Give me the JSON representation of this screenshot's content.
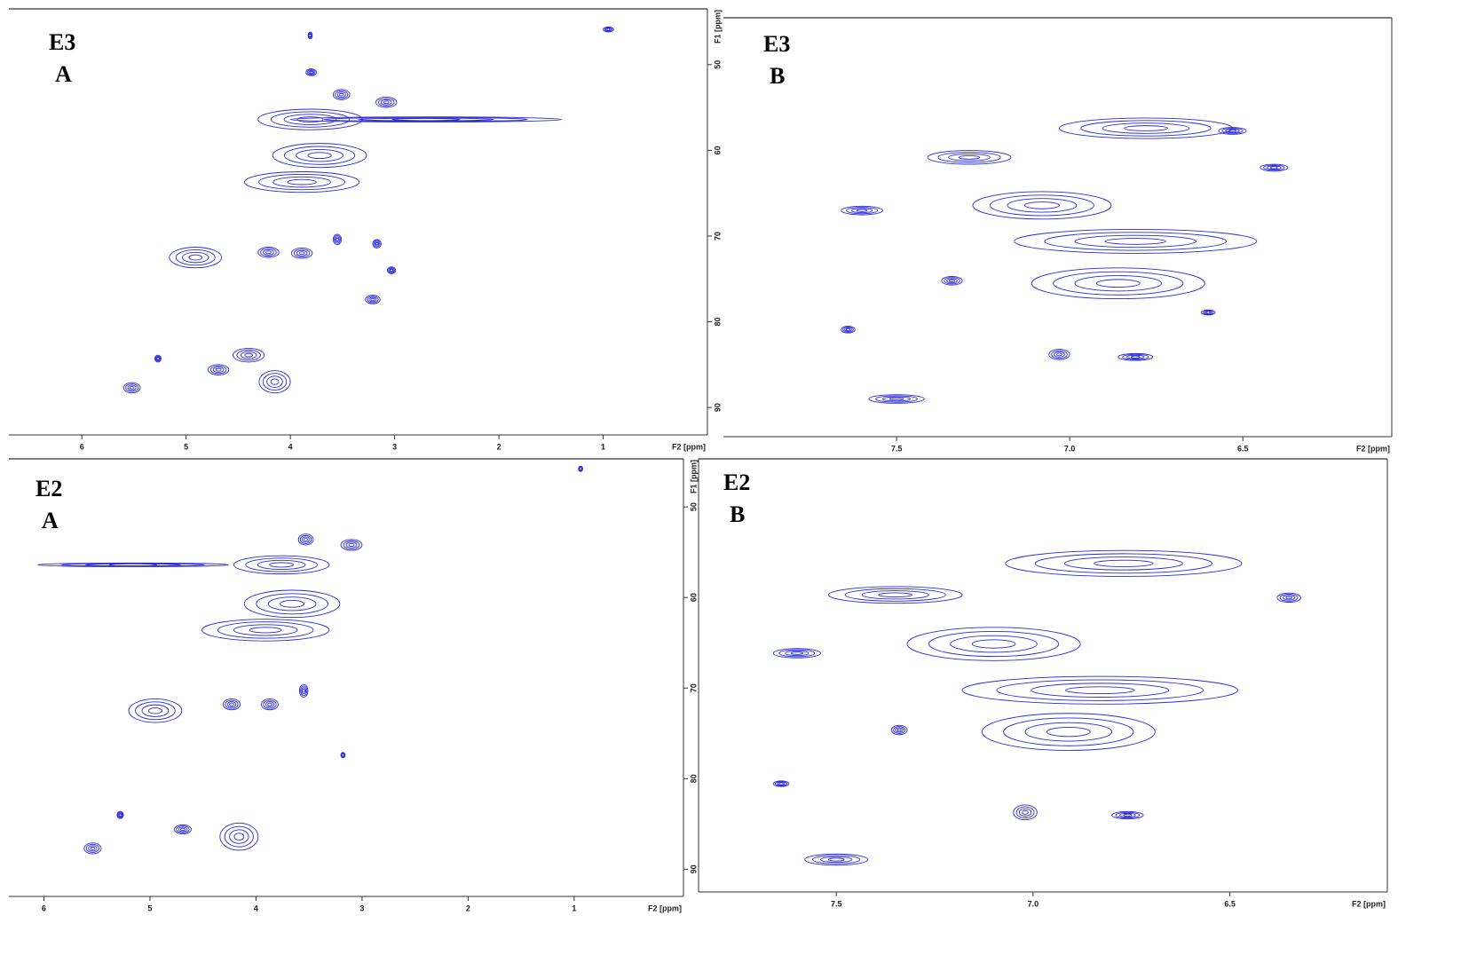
{
  "chart_data": [
    {
      "type": "contour",
      "label": [
        "E3",
        "A"
      ],
      "x_label": "F2 [ppm]",
      "y_label": "F1 [ppm]",
      "color": "#2b2bdc",
      "contour_levels": 4,
      "xlim": [
        6.7,
        0
      ],
      "ylim": [
        43.5,
        93.2
      ],
      "xticks": [
        6,
        5,
        4,
        3,
        2,
        1
      ],
      "yticks": [
        50,
        60,
        70,
        80,
        90
      ],
      "peaks": {
        "x": [
          3.81,
          3.8,
          0.95,
          3.08,
          3.51,
          3.81,
          2.7,
          3.72,
          3.89,
          4.91,
          4.21,
          3.89,
          3.55,
          3.17,
          3.03,
          3.21,
          4.69,
          4.15,
          5.52,
          5.27,
          4.4
        ],
        "y": [
          46.6,
          50.9,
          45.9,
          54.4,
          53.5,
          56.4,
          56.4,
          60.6,
          63.7,
          72.5,
          71.9,
          72.0,
          70.4,
          70.9,
          74.0,
          77.4,
          85.6,
          87.0,
          87.7,
          84.3,
          83.9
        ],
        "dx": [
          0.02,
          0.05,
          0.05,
          0.1,
          0.08,
          0.5,
          1.3,
          0.45,
          0.55,
          0.25,
          0.1,
          0.1,
          0.04,
          0.04,
          0.04,
          0.07,
          0.1,
          0.15,
          0.08,
          0.03,
          0.15
        ],
        "dy": [
          0.4,
          0.4,
          0.3,
          0.6,
          0.6,
          1.2,
          0.3,
          1.4,
          1.2,
          1.2,
          0.6,
          0.6,
          0.6,
          0.5,
          0.4,
          0.5,
          0.6,
          1.3,
          0.6,
          0.4,
          0.8
        ]
      }
    },
    {
      "type": "contour",
      "label": [
        "E3",
        "B"
      ],
      "x_label": "F2 [ppm]",
      "color": "#2b2bdc",
      "contour_levels": 4,
      "xlim": [
        8.0,
        6.07
      ],
      "ylim": [
        44.5,
        93.4
      ],
      "xticks": [
        7.5,
        {
          "value": 7,
          "label": "7.0"
        },
        6.5
      ],
      "peaks": {
        "x": [
          6.78,
          7.29,
          7.08,
          7.6,
          6.81,
          6.86,
          7.34,
          7.5,
          7.03,
          6.81,
          7.64,
          6.41,
          6.53,
          6.6
        ],
        "y": [
          57.4,
          60.8,
          66.4,
          67.0,
          70.6,
          75.5,
          75.2,
          89.0,
          83.8,
          84.1,
          80.9,
          62.0,
          57.7,
          78.9
        ],
        "dx": [
          0.25,
          0.12,
          0.2,
          0.06,
          0.35,
          0.25,
          0.03,
          0.08,
          0.03,
          0.05,
          0.02,
          0.04,
          0.04,
          0.02
        ],
        "dy": [
          1.2,
          0.8,
          1.6,
          0.5,
          1.4,
          1.8,
          0.5,
          0.5,
          0.6,
          0.4,
          0.4,
          0.4,
          0.4,
          0.3
        ]
      }
    },
    {
      "type": "contour",
      "label": [
        "E2",
        "A"
      ],
      "x_label": "F2 [ppm]",
      "y_label": "F1 [ppm]",
      "color": "#2b2bdc",
      "contour_levels": 4,
      "xlim": [
        6.33,
        -0.03
      ],
      "ylim": [
        44.7,
        93.0
      ],
      "xticks": [
        6,
        5,
        4,
        3,
        2,
        1
      ],
      "yticks": [
        50,
        60,
        70,
        80,
        90
      ],
      "peaks": {
        "x": [
          3.76,
          5.16,
          3.53,
          3.1,
          3.66,
          3.91,
          4.95,
          4.23,
          3.87,
          3.55,
          3.18,
          4.69,
          4.16,
          5.54,
          5.28,
          0.94
        ],
        "y": [
          56.4,
          56.4,
          53.6,
          54.2,
          60.7,
          63.6,
          72.5,
          71.8,
          71.8,
          70.3,
          77.4,
          85.6,
          86.4,
          87.7,
          84.0,
          45.8
        ],
        "dx": [
          0.45,
          0.9,
          0.07,
          0.1,
          0.45,
          0.6,
          0.25,
          0.08,
          0.08,
          0.04,
          0.02,
          0.08,
          0.18,
          0.08,
          0.03,
          0.02
        ],
        "dy": [
          1.0,
          0.2,
          0.6,
          0.6,
          1.5,
          1.2,
          1.3,
          0.6,
          0.6,
          0.7,
          0.3,
          0.5,
          1.5,
          0.6,
          0.4,
          0.3
        ]
      }
    },
    {
      "type": "contour",
      "label": [
        "E2",
        "B"
      ],
      "x_label": "F2 [ppm]",
      "color": "#2b2bdc",
      "contour_levels": 4,
      "xlim": [
        7.85,
        6.1
      ],
      "ylim": [
        45.8,
        92.6
      ],
      "xticks": [
        7.5,
        {
          "value": 7,
          "label": "7.0"
        },
        6.5
      ],
      "peaks": {
        "x": [
          6.77,
          7.35,
          7.1,
          7.6,
          6.83,
          6.91,
          7.34,
          7.5,
          7.02,
          6.76,
          7.64,
          6.35
        ],
        "y": [
          57.1,
          60.5,
          65.8,
          66.8,
          70.8,
          75.3,
          75.1,
          89.1,
          84.0,
          84.3,
          80.9,
          60.8
        ],
        "dx": [
          0.3,
          0.17,
          0.22,
          0.06,
          0.35,
          0.22,
          0.02,
          0.08,
          0.03,
          0.04,
          0.02,
          0.03
        ],
        "dy": [
          1.4,
          0.9,
          1.8,
          0.5,
          1.5,
          2.0,
          0.5,
          0.6,
          0.8,
          0.4,
          0.3,
          0.5
        ]
      }
    }
  ]
}
